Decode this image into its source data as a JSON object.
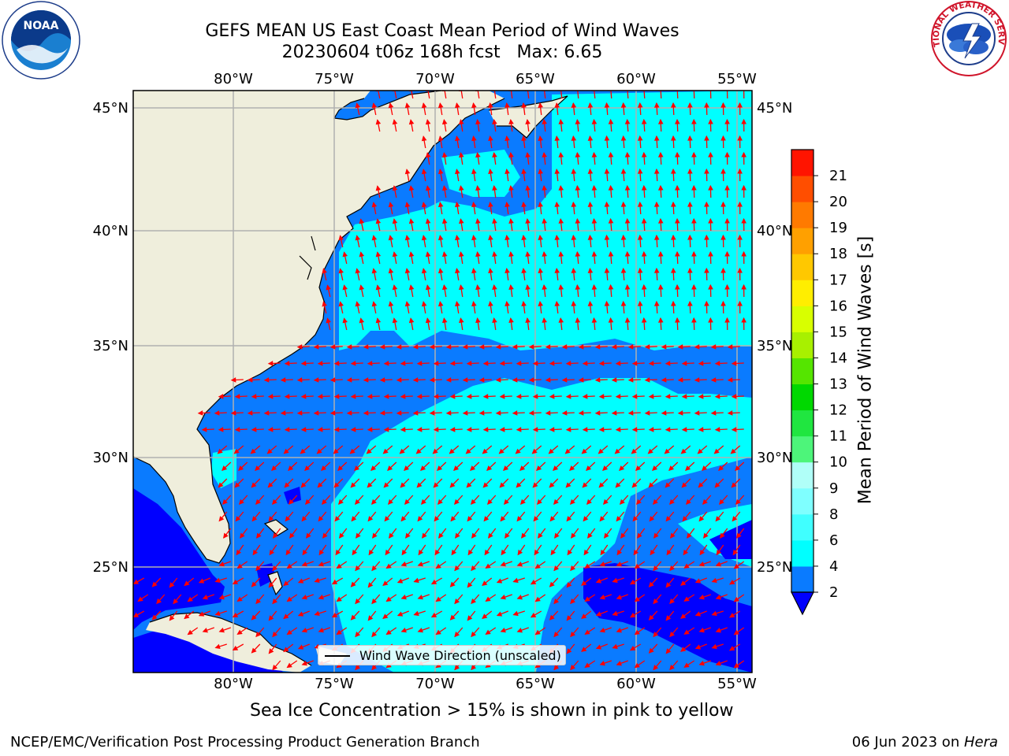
{
  "title_line1": "GEFS MEAN US East Coast Mean Period of Wind Waves",
  "title_line2": "20230604 t06z 168h fcst   Max: 6.65",
  "noaa_logo_text": "NOAA",
  "noaa_ring_text": "NATIONAL OCEANIC AND ATMOSPHERIC ADMINISTRATION · U.S. DEPARTMENT OF COMMERCE",
  "nws_ring_text": "NATIONAL WEATHER SERVICE",
  "lon_labels": [
    "80°W",
    "75°W",
    "70°W",
    "65°W",
    "60°W",
    "55°W"
  ],
  "lat_labels": [
    "45°N",
    "40°N",
    "35°N",
    "30°N",
    "25°N"
  ],
  "legend_label": "Wind Wave Direction (unscaled)",
  "colorbar": {
    "title": "Mean Period of Wind Waves [s]",
    "ticks": [
      "2",
      "4",
      "6",
      "8",
      "9",
      "10",
      "11",
      "12",
      "13",
      "14",
      "15",
      "16",
      "17",
      "18",
      "19",
      "20",
      "21"
    ],
    "colors": [
      "#0a7bff",
      "#00ffff",
      "#40ffff",
      "#7fffff",
      "#b0fff8",
      "#4df57a",
      "#20e640",
      "#00d800",
      "#55e500",
      "#a8f000",
      "#d8ff00",
      "#ffee00",
      "#ffc800",
      "#ffa000",
      "#ff7a00",
      "#ff4e00",
      "#ff1400",
      "#ff0000"
    ],
    "under_color": "#0000ff"
  },
  "map_colors": {
    "land": "#efeedc",
    "sea_low": "#0000ff",
    "sea_2_4": "#0a7bff",
    "sea_4_6": "#00ffff",
    "arrows": "#ff0000",
    "grid": "#b0b0b0"
  },
  "sea_ice_note": "Sea Ice Concentration > 15% is shown in pink to yellow",
  "credit": "NCEP/EMC/Verification Post Processing Product Generation Branch",
  "date_text": "06 Jun 2023 on ",
  "date_machine": "Hera"
}
